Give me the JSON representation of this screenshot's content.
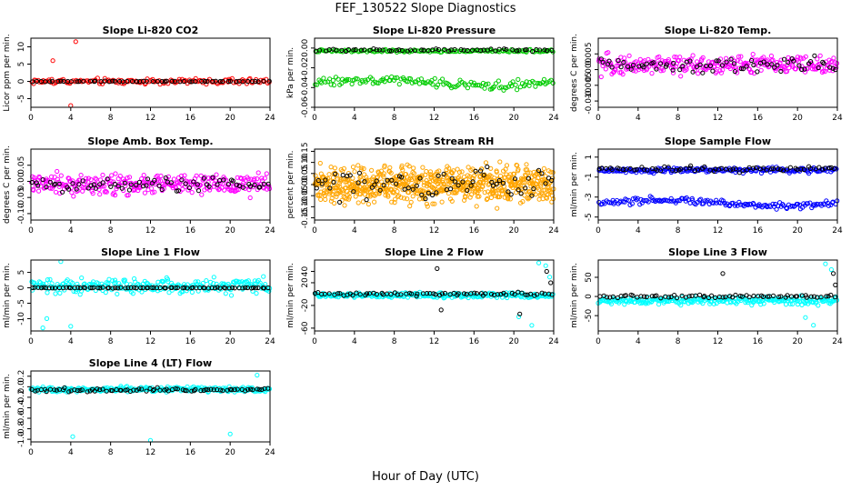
{
  "title": "FEF_130522  Slope Diagnostics",
  "xlabel": "Hour of Day (UTC)",
  "colors": {
    "red": "#ff0000",
    "green": "#00cc00",
    "magenta": "#ff00ff",
    "orange": "#ffa500",
    "blue": "#0000ff",
    "cyan": "#00ffff",
    "black": "#000000"
  },
  "chart_data": [
    {
      "type": "scatter",
      "title": "Slope Li-820 CO2",
      "ylabel": "Licor ppm per min.",
      "xlim": [
        0,
        24
      ],
      "ylim": [
        -7.5,
        12.5
      ],
      "xticks": [
        "0",
        "4",
        "8",
        "12",
        "16",
        "20",
        "24"
      ],
      "yticks": [
        "-5",
        "0",
        "5",
        "10"
      ],
      "series": [
        {
          "name": "all",
          "color": "red",
          "pattern": "noise",
          "center": 0,
          "spread": 2.5,
          "n": 150,
          "outliers": [
            [
              4.5,
              11.5
            ],
            [
              4.0,
              -7.0
            ],
            [
              2.2,
              6.0
            ]
          ]
        },
        {
          "name": "hourly",
          "color": "black",
          "pattern": "flat",
          "center": 0,
          "spread": 0.3,
          "n": 60
        }
      ]
    },
    {
      "type": "scatter",
      "title": "Slope Li-820 Pressure",
      "ylabel": "kPa per min.",
      "xlim": [
        0,
        24
      ],
      "ylim": [
        -0.06,
        0.01
      ],
      "xticks": [
        "0",
        "4",
        "8",
        "12",
        "16",
        "20",
        "24"
      ],
      "yticks": [
        "-0.06",
        "-0.04",
        "-0.02",
        "0.00"
      ],
      "series": [
        {
          "name": "upper",
          "color": "green",
          "pattern": "flat",
          "center": -0.003,
          "spread": 0.004,
          "n": 140
        },
        {
          "name": "lower",
          "color": "green",
          "pattern": "wave",
          "center": -0.035,
          "spread": 0.012,
          "n": 140
        },
        {
          "name": "hourly",
          "color": "black",
          "pattern": "flat",
          "center": -0.002,
          "spread": 0.003,
          "n": 60
        }
      ]
    },
    {
      "type": "scatter",
      "title": "Slope Li-820 Temp.",
      "ylabel": "degrees C per min.",
      "xlim": [
        0,
        24
      ],
      "ylim": [
        -0.012,
        0.01
      ],
      "xticks": [
        "0",
        "4",
        "8",
        "12",
        "16",
        "20",
        "24"
      ],
      "yticks": [
        "-0.010",
        "-0.005",
        "0.000",
        "0.005"
      ],
      "series": [
        {
          "name": "all",
          "color": "magenta",
          "pattern": "noise",
          "center": 0.0015,
          "spread": 0.009,
          "n": 280
        },
        {
          "name": "hourly",
          "color": "black",
          "pattern": "noise",
          "center": 0.0015,
          "spread": 0.007,
          "n": 70
        }
      ]
    },
    {
      "type": "scatter",
      "title": "Slope Amb. Box Temp.",
      "ylabel": "degrees C per min.",
      "xlim": [
        0,
        24
      ],
      "ylim": [
        -0.12,
        0.1
      ],
      "xticks": [
        "0",
        "4",
        "8",
        "12",
        "16",
        "20",
        "24"
      ],
      "yticks": [
        "-0.10",
        "-0.05",
        "0.00",
        "0.05"
      ],
      "series": [
        {
          "name": "all",
          "color": "magenta",
          "pattern": "noise",
          "center": -0.01,
          "spread": 0.09,
          "n": 300
        },
        {
          "name": "hourly",
          "color": "black",
          "pattern": "noise",
          "center": -0.01,
          "spread": 0.06,
          "n": 70
        }
      ]
    },
    {
      "type": "scatter",
      "title": "Slope Gas Stream RH",
      "ylabel": "percent per min.",
      "xlim": [
        0,
        24
      ],
      "ylim": [
        -0.16,
        0.16
      ],
      "xticks": [
        "0",
        "4",
        "8",
        "12",
        "16",
        "20",
        "24"
      ],
      "yticks": [
        "-0.15",
        "-0.10",
        "-0.05",
        "0.00",
        "0.05",
        "0.10",
        "0.15"
      ],
      "series": [
        {
          "name": "all",
          "color": "orange",
          "pattern": "noise",
          "center": 0.0,
          "spread": 0.24,
          "n": 700
        },
        {
          "name": "hourly",
          "color": "black",
          "pattern": "noise",
          "center": 0.0,
          "spread": 0.18,
          "n": 70
        }
      ]
    },
    {
      "type": "scatter",
      "title": "Slope Sample Flow",
      "ylabel": "ml/min per min.",
      "xlim": [
        0,
        24
      ],
      "ylim": [
        -5.3,
        1.8
      ],
      "xticks": [
        "0",
        "4",
        "8",
        "12",
        "16",
        "20",
        "24"
      ],
      "yticks": [
        "-5",
        "-3",
        "-1",
        "1"
      ],
      "series": [
        {
          "name": "upper",
          "color": "blue",
          "pattern": "flat",
          "center": -0.3,
          "spread": 0.8,
          "n": 200
        },
        {
          "name": "lower",
          "color": "blue",
          "pattern": "wave",
          "center": -3.6,
          "spread": 1.0,
          "n": 160
        },
        {
          "name": "hourly",
          "color": "black",
          "pattern": "flat",
          "center": -0.2,
          "spread": 0.9,
          "n": 70
        }
      ]
    },
    {
      "type": "scatter",
      "title": "Slope Line 1 Flow",
      "ylabel": "ml/min per min.",
      "xlim": [
        0,
        24
      ],
      "ylim": [
        -14,
        9
      ],
      "xticks": [
        "0",
        "4",
        "8",
        "12",
        "16",
        "20",
        "24"
      ],
      "yticks": [
        "-10",
        "-5",
        "0",
        "5"
      ],
      "series": [
        {
          "name": "all",
          "color": "cyan",
          "pattern": "noise",
          "center": 0.5,
          "spread": 7,
          "n": 260,
          "outliers": [
            [
              1.2,
              -13
            ],
            [
              1.6,
              -10
            ],
            [
              4.0,
              -12.5
            ],
            [
              3.0,
              8.5
            ]
          ]
        },
        {
          "name": "hourly",
          "color": "black",
          "pattern": "flat",
          "center": 0,
          "spread": 0.4,
          "n": 80
        }
      ]
    },
    {
      "type": "scatter",
      "title": "Slope Line 2 Flow",
      "ylabel": "ml/min per min.",
      "xlim": [
        0,
        24
      ],
      "ylim": [
        -65,
        60
      ],
      "xticks": [
        "0",
        "4",
        "8",
        "12",
        "16",
        "20",
        "24"
      ],
      "yticks": [
        "-60",
        "-20",
        "20",
        "40"
      ],
      "series": [
        {
          "name": "all",
          "color": "cyan",
          "pattern": "noise",
          "center": -2,
          "spread": 14,
          "n": 260,
          "outliers": [
            [
              22.5,
              55
            ],
            [
              23.2,
              50
            ],
            [
              21.8,
              -55
            ],
            [
              20.5,
              -40
            ],
            [
              23.6,
              30
            ]
          ]
        },
        {
          "name": "hourly",
          "color": "black",
          "pattern": "flat",
          "center": 0,
          "spread": 8,
          "n": 70,
          "outliers": [
            [
              12.3,
              45
            ],
            [
              12.7,
              -28
            ],
            [
              23.3,
              40
            ],
            [
              23.7,
              20
            ],
            [
              20.6,
              -35
            ]
          ]
        }
      ]
    },
    {
      "type": "scatter",
      "title": "Slope Line 3 Flow",
      "ylabel": "ml/min per min.",
      "xlim": [
        0,
        24
      ],
      "ylim": [
        -90,
        95
      ],
      "xticks": [
        "0",
        "4",
        "8",
        "12",
        "16",
        "20",
        "24"
      ],
      "yticks": [
        "-50",
        "0",
        "50"
      ],
      "series": [
        {
          "name": "all",
          "color": "cyan",
          "pattern": "noise",
          "center": -10,
          "spread": 30,
          "n": 260,
          "outliers": [
            [
              22.8,
              85
            ],
            [
              23.4,
              70
            ],
            [
              21.6,
              -75
            ],
            [
              20.8,
              -55
            ]
          ]
        },
        {
          "name": "hourly",
          "color": "black",
          "pattern": "flat",
          "center": 0,
          "spread": 12,
          "n": 70,
          "outliers": [
            [
              12.5,
              60
            ],
            [
              23.6,
              60
            ],
            [
              23.8,
              30
            ]
          ]
        }
      ]
    },
    {
      "type": "scatter",
      "title": "Slope Line 4 (LT) Flow",
      "ylabel": "ml/min per min.",
      "xlim": [
        0,
        24
      ],
      "ylim": [
        -1.05,
        0.3
      ],
      "xticks": [
        "0",
        "4",
        "8",
        "12",
        "16",
        "20",
        "24"
      ],
      "yticks": [
        "-1.0",
        "-0.8",
        "-0.6",
        "-0.4",
        "-0.2",
        "0.0",
        "0.2"
      ],
      "series": [
        {
          "name": "all",
          "color": "cyan",
          "pattern": "noise",
          "center": -0.05,
          "spread": 0.14,
          "n": 280,
          "outliers": [
            [
              4.2,
              -0.95
            ],
            [
              12.0,
              -1.02
            ],
            [
              20.0,
              -0.9
            ],
            [
              22.7,
              0.22
            ]
          ]
        },
        {
          "name": "hourly",
          "color": "black",
          "pattern": "flat",
          "center": -0.06,
          "spread": 0.1,
          "n": 80
        }
      ]
    }
  ]
}
